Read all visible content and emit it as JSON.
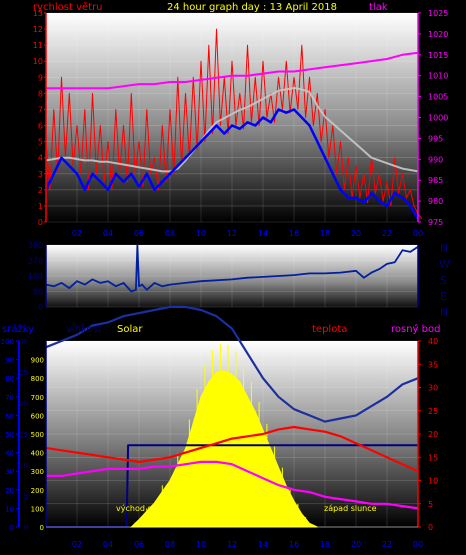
{
  "title": "24 hour graph day : 13 April 2018",
  "colors": {
    "wind": "#ff0000",
    "gust": "#ff0000",
    "avg_wind": "#0000ff",
    "wind_dir_line": "#0020a0",
    "pressure": "#ff00ff",
    "gray_line": "#c8c8c8",
    "humidity": "#1a2fa0",
    "solar": "#ffff00",
    "temperature": "#ff0000",
    "dewpoint": "#ff00ff",
    "rain": "#0000ff",
    "label_yellow": "#ffff00",
    "label_blue": "#0000ff",
    "label_navy": "#000080",
    "label_red": "#ff0000",
    "label_magenta": "#ff00ff"
  },
  "chart_data": [
    {
      "type": "line",
      "title": "24 hour graph day : 13 April 2018",
      "left_axis_label": "rychlost větru",
      "right_axis_label": "tlak",
      "x_ticks": [
        "02",
        "04",
        "06",
        "08",
        "10",
        "12",
        "14",
        "16",
        "18",
        "20",
        "22",
        "00"
      ],
      "x_range": [
        0,
        24
      ],
      "ylim_left": [
        0,
        13
      ],
      "ylim_right": [
        975,
        1025
      ],
      "y_ticks_left": [
        "0",
        "1",
        "2",
        "3",
        "4",
        "5",
        "6",
        "7",
        "8",
        "9",
        "10",
        "11",
        "12",
        "13"
      ],
      "y_ticks_right": [
        "975",
        "980",
        "985",
        "990",
        "995",
        "1000",
        "1005",
        "1010",
        "1015",
        "1020",
        "1025"
      ],
      "series": [
        {
          "key": "gust_max",
          "x": [
            0,
            0.5,
            1,
            1.5,
            2,
            2.5,
            3,
            3.5,
            4,
            4.5,
            5,
            5.5,
            6,
            6.5,
            7,
            7.5,
            8,
            8.5,
            9,
            9.5,
            10,
            10.5,
            11,
            11.5,
            12,
            12.5,
            13,
            13.5,
            14,
            14.5,
            15,
            15.5,
            16,
            16.5,
            17,
            17.5,
            18,
            18.5,
            19,
            19.5,
            20,
            20.5,
            21,
            21.5,
            22,
            22.5,
            23,
            23.5,
            24
          ],
          "y": [
            5,
            7,
            9,
            8,
            6,
            7,
            8,
            6,
            5,
            7,
            6,
            8,
            5,
            7,
            4,
            6,
            7,
            9,
            8,
            9,
            10,
            11,
            12,
            9,
            10,
            8,
            11,
            9,
            10,
            8,
            9,
            10,
            9,
            11,
            9,
            8,
            7,
            6,
            5,
            4,
            3.5,
            3,
            4,
            3,
            2.5,
            4,
            3,
            2,
            0.5
          ]
        },
        {
          "key": "wind_speed",
          "x": [
            0,
            0.5,
            1,
            1.5,
            2,
            2.5,
            3,
            3.5,
            4,
            4.5,
            5,
            5.5,
            6,
            6.5,
            7,
            7.5,
            8,
            8.5,
            9,
            9.5,
            10,
            10.5,
            11,
            11.5,
            12,
            12.5,
            13,
            13.5,
            14,
            14.5,
            15,
            15.5,
            16,
            16.5,
            17,
            17.5,
            18,
            18.5,
            19,
            19.5,
            20,
            20.5,
            21,
            21.5,
            22,
            22.5,
            23,
            23.5,
            24
          ],
          "y": [
            2,
            3,
            4,
            3.5,
            3,
            2,
            3,
            2.5,
            2,
            3,
            2.5,
            3,
            2.2,
            3,
            2,
            2.5,
            3,
            3.5,
            4,
            4.5,
            5,
            5.5,
            6,
            5.5,
            6,
            5.8,
            6.2,
            6,
            6.5,
            6.2,
            7,
            6.8,
            7,
            6.5,
            6,
            5,
            4,
            3,
            2,
            1.5,
            1.5,
            1.2,
            1.8,
            1.3,
            1,
            1.8,
            1.5,
            1,
            0.2
          ]
        },
        {
          "key": "avg_wind",
          "x": [
            0,
            0.5,
            1,
            1.5,
            2,
            2.5,
            3,
            3.5,
            4,
            4.5,
            5,
            5.5,
            6,
            6.5,
            7,
            7.5,
            8,
            8.5,
            9,
            9.5,
            10,
            10.5,
            11,
            11.5,
            12,
            12.5,
            13,
            13.5,
            14,
            14.5,
            15,
            15.5,
            16,
            16.5,
            17,
            17.5,
            18,
            18.5,
            19,
            19.5,
            20,
            20.5,
            21,
            21.5,
            22,
            22.5,
            23,
            23.5,
            24
          ],
          "y": [
            3.8,
            3.9,
            4,
            4,
            3.9,
            3.8,
            3.8,
            3.7,
            3.7,
            3.6,
            3.5,
            3.4,
            3.3,
            3.2,
            3.1,
            3,
            3,
            3.2,
            3.8,
            4.5,
            5.2,
            6,
            6.6,
            6.9,
            7.2,
            7.5,
            7.7,
            8,
            8.3,
            8.6,
            8.9,
            9,
            9.1,
            9,
            8.8,
            7.8,
            7,
            6.5,
            6,
            5.5,
            5,
            4.5,
            4,
            3.8,
            3.6,
            3.4,
            3.2,
            3.1,
            3
          ]
        },
        {
          "key": "pressure",
          "x": [
            0,
            2,
            4,
            5,
            6,
            7,
            8,
            9,
            10,
            11,
            12,
            13,
            14,
            15,
            16,
            17,
            18,
            19,
            20,
            21,
            22,
            23,
            24
          ],
          "y": [
            1007,
            1007,
            1007,
            1007.5,
            1008,
            1008,
            1008.5,
            1008.5,
            1009,
            1009.5,
            1010,
            1010,
            1010.5,
            1011,
            1011,
            1011.5,
            1012,
            1012.5,
            1013,
            1013.5,
            1014,
            1015,
            1015.5
          ]
        }
      ]
    },
    {
      "type": "line",
      "title": "",
      "x_range": [
        0,
        24
      ],
      "ylim": [
        0,
        360
      ],
      "y_ticks": [
        "0",
        "90",
        "180",
        "270",
        "360"
      ],
      "compass_labels": [
        "N",
        "W",
        "S",
        "E",
        "N"
      ],
      "series": [
        {
          "key": "wind_direction",
          "x": [
            0,
            0.5,
            1,
            1.5,
            2,
            2.5,
            3,
            3.5,
            4,
            4.5,
            5,
            5.5,
            5.8,
            5.9,
            6,
            6.2,
            6.5,
            7,
            7.5,
            8,
            9,
            10,
            11,
            12,
            13,
            14,
            15,
            16,
            17,
            18,
            19,
            20,
            20.5,
            21,
            21.5,
            22,
            22.5,
            23,
            23.5,
            24
          ],
          "y": [
            130,
            120,
            140,
            110,
            150,
            130,
            160,
            140,
            150,
            120,
            140,
            90,
            100,
            360,
            120,
            130,
            100,
            140,
            120,
            130,
            140,
            150,
            155,
            160,
            170,
            175,
            180,
            185,
            195,
            195,
            200,
            210,
            170,
            200,
            220,
            250,
            260,
            330,
            320,
            350
          ]
        }
      ]
    },
    {
      "type": "line",
      "title": "",
      "left_axis_labels": [
        "srážky",
        "vlhkost",
        "Solar"
      ],
      "right_axis_labels": [
        "teplota",
        "rosný bod"
      ],
      "annotations": [
        "východ slunce",
        "západ slunce"
      ],
      "x_ticks": [
        "02",
        "04",
        "06",
        "08",
        "10",
        "12",
        "14",
        "16",
        "18",
        "20",
        "22",
        "00"
      ],
      "x_range": [
        0,
        24
      ],
      "rain_ylim": [
        0,
        100
      ],
      "humidity_ylim": [
        0,
        30
      ],
      "solar_ylim": [
        0,
        1000
      ],
      "temp_ylim": [
        0,
        40
      ],
      "rain_ticks": [
        "0",
        "10",
        "20",
        "30",
        "40",
        "50",
        "60",
        "70",
        "80",
        "90",
        "100"
      ],
      "humidity_ticks": [
        "0",
        "5",
        "10",
        "15",
        "20",
        "25",
        "30"
      ],
      "solar_ticks": [
        "0",
        "100",
        "200",
        "300",
        "400",
        "500",
        "600",
        "700",
        "800",
        "900"
      ],
      "temp_ticks": [
        "0",
        "5",
        "10",
        "15",
        "20",
        "25",
        "30",
        "35",
        "40"
      ],
      "series": [
        {
          "key": "humidity",
          "x": [
            0,
            1,
            2,
            3,
            4,
            5,
            6,
            7,
            8,
            9,
            10,
            11,
            12,
            13,
            14,
            15,
            16,
            17,
            18,
            19,
            20,
            21,
            22,
            23,
            24
          ],
          "y": [
            29,
            30,
            31,
            32.5,
            33,
            34,
            34.5,
            35,
            35.5,
            35.5,
            35,
            34,
            32,
            28,
            24,
            21,
            19,
            18,
            17,
            17.5,
            18,
            19.5,
            21,
            23,
            24
          ]
        },
        {
          "key": "temperature",
          "x": [
            0,
            1,
            2,
            3,
            4,
            5,
            6,
            7,
            8,
            9,
            10,
            11,
            12,
            13,
            14,
            15,
            16,
            17,
            18,
            19,
            20,
            21,
            22,
            23,
            24
          ],
          "y": [
            17,
            16.5,
            16,
            15.5,
            15,
            14.5,
            14,
            14.5,
            15,
            16,
            17,
            18,
            19,
            19.5,
            20,
            21,
            21.5,
            21,
            20.5,
            19.5,
            18,
            16.5,
            15,
            13.5,
            12
          ]
        },
        {
          "key": "dewpoint",
          "x": [
            0,
            1,
            2,
            3,
            4,
            5,
            6,
            7,
            8,
            9,
            10,
            11,
            12,
            13,
            14,
            15,
            16,
            17,
            18,
            19,
            20,
            21,
            22,
            23,
            24
          ],
          "y": [
            11,
            11,
            11.5,
            12,
            12.5,
            12.5,
            12.5,
            13,
            13,
            13.5,
            14,
            14,
            13.5,
            12,
            10.5,
            9,
            8,
            7.5,
            6.5,
            6,
            5.5,
            5,
            5,
            4.5,
            4
          ]
        },
        {
          "key": "rain_total",
          "x": [
            0,
            5.2,
            5.3,
            24
          ],
          "y": [
            0,
            0,
            44,
            44
          ]
        },
        {
          "key": "solar",
          "x": [
            5.5,
            6,
            7,
            8,
            9,
            9.5,
            10,
            10.5,
            11,
            11.5,
            12,
            12.5,
            13,
            13.5,
            14,
            14.5,
            15,
            15.5,
            16,
            16.5,
            17,
            17.5
          ],
          "y": [
            0,
            40,
            130,
            250,
            420,
            560,
            700,
            780,
            830,
            840,
            820,
            780,
            700,
            620,
            520,
            420,
            320,
            220,
            140,
            70,
            20,
            0
          ]
        }
      ]
    }
  ]
}
